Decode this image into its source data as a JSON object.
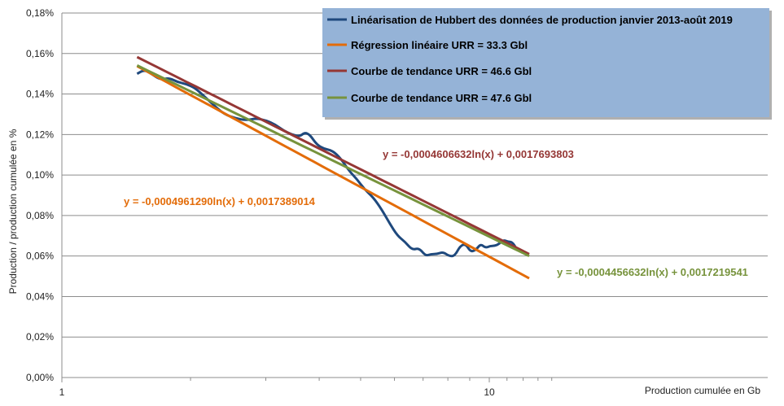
{
  "chart_data": {
    "type": "line",
    "xlabel": "Production cumulée en Gb",
    "ylabel": "Production / production cumulée en %",
    "x_scale": "log",
    "xlim": [
      1,
      14
    ],
    "ylim": [
      0,
      0.0018
    ],
    "x_ticks": [
      {
        "value": 1,
        "label": "1"
      },
      {
        "value": 10,
        "label": "10"
      }
    ],
    "y_ticks": [
      {
        "value": 0,
        "label": "0,00%"
      },
      {
        "value": 0.0002,
        "label": "0,02%"
      },
      {
        "value": 0.0004,
        "label": "0,04%"
      },
      {
        "value": 0.0006,
        "label": "0,06%"
      },
      {
        "value": 0.0008,
        "label": "0,08%"
      },
      {
        "value": 0.001,
        "label": "0,10%"
      },
      {
        "value": 0.0012,
        "label": "0,12%"
      },
      {
        "value": 0.0014,
        "label": "0,14%"
      },
      {
        "value": 0.0016,
        "label": "0,16%"
      },
      {
        "value": 0.0018,
        "label": "0,18%"
      }
    ],
    "grid": true,
    "legend_position": "top-right",
    "series": [
      {
        "name": "Linéarisation de Hubbert des données de production janvier 2013-août 2019",
        "color": "#1f497d",
        "kind": "data",
        "x": [
          1.5,
          1.56,
          1.62,
          1.7,
          1.78,
          1.86,
          1.95,
          2.05,
          2.15,
          2.28,
          2.4,
          2.55,
          2.7,
          2.85,
          3.0,
          3.15,
          3.3,
          3.45,
          3.6,
          3.7,
          3.8,
          3.95,
          4.1,
          4.3,
          4.5,
          4.7,
          4.9,
          5.1,
          5.35,
          5.6,
          5.85,
          6.1,
          6.35,
          6.6,
          6.85,
          7.1,
          7.3,
          7.55,
          7.8,
          8.05,
          8.3,
          8.55,
          8.8,
          9.05,
          9.3,
          9.55,
          9.8,
          10.05,
          10.3,
          10.55,
          10.8,
          11.05,
          11.3,
          11.55
        ],
        "y": [
          0.0015,
          0.00152,
          0.0015,
          0.00147,
          0.00148,
          0.00146,
          0.00145,
          0.00143,
          0.00139,
          0.00134,
          0.0013,
          0.00128,
          0.00127,
          0.00128,
          0.00127,
          0.00125,
          0.00122,
          0.0012,
          0.00119,
          0.00121,
          0.0012,
          0.00115,
          0.00113,
          0.00112,
          0.00108,
          0.00102,
          0.00098,
          0.00093,
          0.00089,
          0.00083,
          0.00076,
          0.0007,
          0.00067,
          0.00063,
          0.00064,
          0.0006,
          0.00061,
          0.00061,
          0.00062,
          0.0006,
          0.0006,
          0.00065,
          0.00066,
          0.00062,
          0.00063,
          0.00066,
          0.00064,
          0.00065,
          0.00065,
          0.00066,
          0.00068,
          0.00067,
          0.00067,
          0.00064
        ]
      },
      {
        "name": "Régression linéaire URR = 33.3 Gbl",
        "color": "#e36c09",
        "kind": "fit",
        "a": -0.000496129,
        "b": 0.0017389014,
        "x_range": [
          1.5,
          12.4
        ]
      },
      {
        "name": "Courbe de tendance URR = 46.6 Gbl",
        "color": "#953735",
        "kind": "fit",
        "a": -0.0004606632,
        "b": 0.0017693803,
        "x_range": [
          1.5,
          12.4
        ]
      },
      {
        "name": "Courbe de tendance URR = 47.6 Gbl",
        "color": "#77933c",
        "kind": "fit",
        "a": -0.0004456632,
        "b": 0.0017219541,
        "x_range": [
          1.5,
          12.4
        ]
      }
    ],
    "annotations": [
      {
        "text": "y = -0,0004606632ln(x) + 0,0017693803",
        "color": "#953735"
      },
      {
        "text": "y = -0,0004961290ln(x) + 0,0017389014",
        "color": "#e36c09"
      },
      {
        "text": "y = -0,0004456632ln(x) + 0,0017219541",
        "color": "#77933c"
      }
    ],
    "legend_bg": "#95b3d7"
  }
}
